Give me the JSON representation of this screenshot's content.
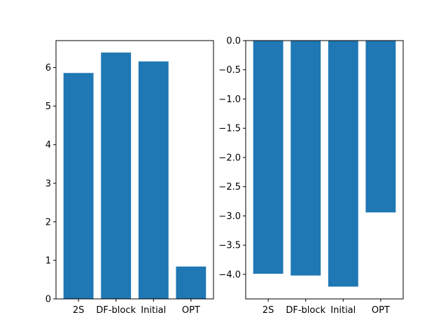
{
  "colors": {
    "bar": "#1f77b4",
    "axis": "#000000",
    "background": "#ffffff"
  },
  "chart_data": [
    {
      "type": "bar",
      "categories": [
        "2S",
        "DF-block",
        "Initial",
        "OPT"
      ],
      "values": [
        5.86,
        6.39,
        6.16,
        0.84
      ],
      "ylim": [
        0,
        6.7
      ],
      "yticks": [
        0,
        1,
        2,
        3,
        4,
        5,
        6
      ],
      "ytick_labels": [
        "0",
        "1",
        "2",
        "3",
        "4",
        "5",
        "6"
      ],
      "title": "",
      "xlabel": "",
      "ylabel": "",
      "grid": false,
      "legend": false
    },
    {
      "type": "bar",
      "categories": [
        "2S",
        "DF-block",
        "Initial",
        "OPT"
      ],
      "values": [
        -3.99,
        -4.02,
        -4.21,
        -2.94
      ],
      "ylim": [
        -4.42,
        0.0
      ],
      "yticks": [
        0.0,
        -0.5,
        -1.0,
        -1.5,
        -2.0,
        -2.5,
        -3.0,
        -3.5,
        -4.0
      ],
      "ytick_labels": [
        "0.0",
        "−0.5",
        "−1.0",
        "−1.5",
        "−2.0",
        "−2.5",
        "−3.0",
        "−3.5",
        "−4.0"
      ],
      "title": "",
      "xlabel": "",
      "ylabel": "",
      "grid": false,
      "legend": false
    }
  ]
}
